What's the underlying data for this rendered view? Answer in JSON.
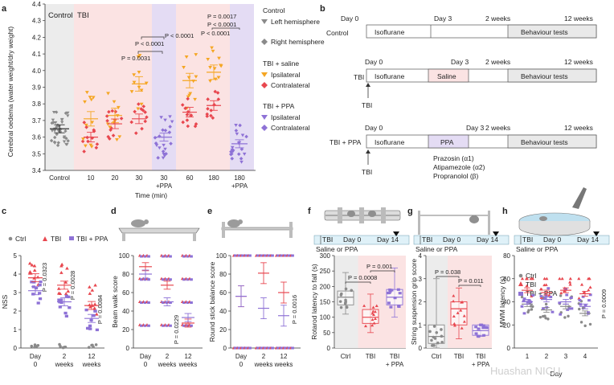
{
  "panels": {
    "a": {
      "label": "a",
      "region_control": "Control",
      "region_tbi": "TBI",
      "ylabel": "Cerebral oedema (water weight/dry weight)",
      "xlabel": "Time (min)",
      "legend": {
        "control_title": "Control",
        "left_hemisphere": "Left hemisphere",
        "right_hemisphere": "Right hemisphere",
        "saline_title": "TBI + saline",
        "ppa_title": "TBI + PPA",
        "ipsilateral": "Ipsilateral",
        "contralateral": "Contralateral"
      },
      "pvalues": [
        "P = 0.0031",
        "P < 0.0001",
        "P < 0.0001",
        "P = 0.0017",
        "P < 0.0001",
        "P < 0.0001"
      ]
    },
    "b": {
      "label": "b",
      "rows": [
        {
          "name": "Control",
          "stage1": "Isoflurane",
          "stage2": "",
          "end": "Behaviour tests"
        },
        {
          "name": "TBI",
          "stage1": "Isoflurane",
          "stage2": "Saline",
          "end": "Behaviour tests",
          "arrow": "TBI"
        },
        {
          "name": "TBI + PPA",
          "stage1": "Isoflurane",
          "stage2": "PPA",
          "end": "Behaviour tests",
          "arrow": "TBI"
        }
      ],
      "timepoints": [
        "Day 0",
        "Day 3",
        "2 weeks",
        "12 weeks"
      ],
      "drugs": [
        "Prazosin (α1)",
        "Atipamezole (α2)",
        "Propranolol (β)"
      ]
    },
    "c": {
      "label": "c",
      "legend": [
        "Ctrl",
        "TBI",
        "TBI + PPA"
      ],
      "ylabel": "NSS",
      "xticks": [
        "Day 0",
        "2 weeks",
        "12 weeks"
      ],
      "pvalues": [
        "P = 0.0323",
        "P = 0.0028",
        "P = 0.0084"
      ]
    },
    "d": {
      "label": "d",
      "ylabel": "Beam walk score",
      "xticks": [
        "Day 0",
        "2 weeks",
        "12 weeks"
      ],
      "pvalues": [
        "P = 0.0229"
      ]
    },
    "e": {
      "label": "e",
      "ylabel": "Round stick balance score",
      "xticks": [
        "Day 0",
        "2 weeks",
        "12 weeks"
      ],
      "pvalues": [
        "P = 0.0016"
      ]
    },
    "f": {
      "label": "f",
      "timeline": [
        "TBI",
        "Day 0",
        "Day 14"
      ],
      "treatment": "Saline or PPA",
      "ylabel": "Rotarod latency to fall (s)",
      "xticks": [
        "Ctrl",
        "TBI",
        "TBI + PPA"
      ],
      "pvalues": [
        "P = 0.0008",
        "P = 0.001"
      ]
    },
    "g": {
      "label": "g",
      "timeline": [
        "TBI",
        "Day 0",
        "Day 14"
      ],
      "treatment": "Saline or PPA",
      "ylabel": "String suspension grip score",
      "xticks": [
        "Ctrl",
        "TBI",
        "TBI + PPA"
      ],
      "pvalues": [
        "P = 0.038",
        "P = 0.011"
      ]
    },
    "h": {
      "label": "h",
      "timeline": [
        "TBI",
        "Day 0",
        "Day 14"
      ],
      "treatment": "Saline or PPA",
      "legend": [
        "Ctrl",
        "TBI",
        "TBI + PPA"
      ],
      "ylabel": "MWM latency (s)",
      "xlabel": "Day",
      "xticks": [
        "1",
        "2",
        "3",
        "4"
      ],
      "pvalues": [
        "P = 0.0009"
      ]
    }
  },
  "watermark": "Huashan NICU",
  "colors": {
    "control": "#8a8a8a",
    "saline": "#f5a623",
    "contralateral": "#e8474f",
    "ppa": "#8e72d6",
    "tbi": "#e8474f",
    "tbi_band": "#fbe3e3",
    "ppa_band": "#e4dcf4",
    "ctrl_band": "#ececec"
  },
  "chart_data": [
    {
      "panel": "a",
      "type": "scatter",
      "categories": [
        "Control",
        "10",
        "20",
        "30",
        "30 +PPA",
        "60",
        "180",
        "180 +PPA"
      ],
      "ylim": [
        3.4,
        4.4
      ],
      "yticks": [
        3.4,
        3.5,
        3.6,
        3.7,
        3.8,
        3.9,
        4.0,
        4.1,
        4.2,
        4.3,
        4.4
      ],
      "series": [
        {
          "name": "Control",
          "means": [
            3.65,
            null,
            null,
            null,
            null,
            null,
            null,
            null
          ]
        },
        {
          "name": "Ipsilateral",
          "means": [
            null,
            3.71,
            3.73,
            3.92,
            null,
            3.94,
            3.99,
            null
          ]
        },
        {
          "name": "Contralateral",
          "means": [
            null,
            3.6,
            3.68,
            3.71,
            null,
            3.75,
            3.79,
            null
          ]
        },
        {
          "name": "PPA",
          "means": [
            null,
            null,
            null,
            null,
            3.6,
            null,
            null,
            3.56
          ]
        }
      ]
    },
    {
      "panel": "c",
      "type": "scatter",
      "categories": [
        "Day 0",
        "2 weeks",
        "12 weeks"
      ],
      "ylim": [
        0,
        5
      ],
      "yticks": [
        0,
        1,
        2,
        3,
        4,
        5
      ],
      "series": [
        {
          "name": "Ctrl",
          "means": [
            0,
            0,
            0
          ]
        },
        {
          "name": "TBI",
          "means": [
            3.8,
            3.4,
            2.3
          ]
        },
        {
          "name": "TBI + PPA",
          "means": [
            3.1,
            2.5,
            1.6
          ]
        }
      ]
    },
    {
      "panel": "d",
      "type": "scatter",
      "categories": [
        "Day 0",
        "2 weeks",
        "12 weeks"
      ],
      "ylim": [
        0,
        100
      ],
      "yticks": [
        0,
        20,
        40,
        60,
        80,
        100
      ],
      "series": [
        {
          "name": "TBI",
          "means": [
            88,
            68,
            27
          ]
        },
        {
          "name": "TBI + PPA",
          "means": [
            80,
            50,
            33
          ]
        }
      ]
    },
    {
      "panel": "e",
      "type": "scatter",
      "categories": [
        "Day 0",
        "2 weeks",
        "12 weeks"
      ],
      "ylim": [
        0,
        100
      ],
      "yticks": [
        0,
        20,
        40,
        60,
        80,
        100
      ],
      "series": [
        {
          "name": "TBI",
          "means": [
            56,
            81,
            60
          ]
        },
        {
          "name": "TBI + PPA",
          "means": [
            56,
            43,
            35
          ]
        }
      ]
    },
    {
      "panel": "f",
      "type": "box",
      "categories": [
        "Ctrl",
        "TBI",
        "TBI + PPA"
      ],
      "ylim": [
        0,
        300
      ],
      "yticks": [
        0,
        50,
        100,
        150,
        200,
        250,
        300
      ],
      "medians": [
        165,
        100,
        165
      ],
      "q1": [
        140,
        80,
        140
      ],
      "q3": [
        185,
        125,
        190
      ],
      "min": [
        110,
        50,
        100
      ],
      "max": [
        245,
        175,
        260
      ]
    },
    {
      "panel": "g",
      "type": "box",
      "categories": [
        "Ctrl",
        "TBI",
        "TBI + PPA"
      ],
      "ylim": [
        0,
        4
      ],
      "yticks": [
        0,
        1,
        2,
        3,
        4
      ],
      "medians": [
        0.5,
        1.7,
        0.75
      ],
      "q1": [
        0.2,
        1.0,
        0.55
      ],
      "q3": [
        1.0,
        2.0,
        1.0
      ],
      "min": [
        0,
        0.4,
        0.5
      ],
      "max": [
        3.0,
        2.6,
        1.0
      ]
    },
    {
      "panel": "h",
      "type": "scatter",
      "categories": [
        "1",
        "2",
        "3",
        "4"
      ],
      "ylim": [
        0,
        80
      ],
      "yticks": [
        0,
        20,
        40,
        60,
        80
      ],
      "series": [
        {
          "name": "Ctrl",
          "means": [
            38,
            33,
            36,
            30
          ]
        },
        {
          "name": "TBI",
          "means": [
            50,
            48,
            50,
            47
          ]
        },
        {
          "name": "TBI + PPA",
          "means": [
            40,
            42,
            40,
            36
          ]
        }
      ]
    }
  ]
}
